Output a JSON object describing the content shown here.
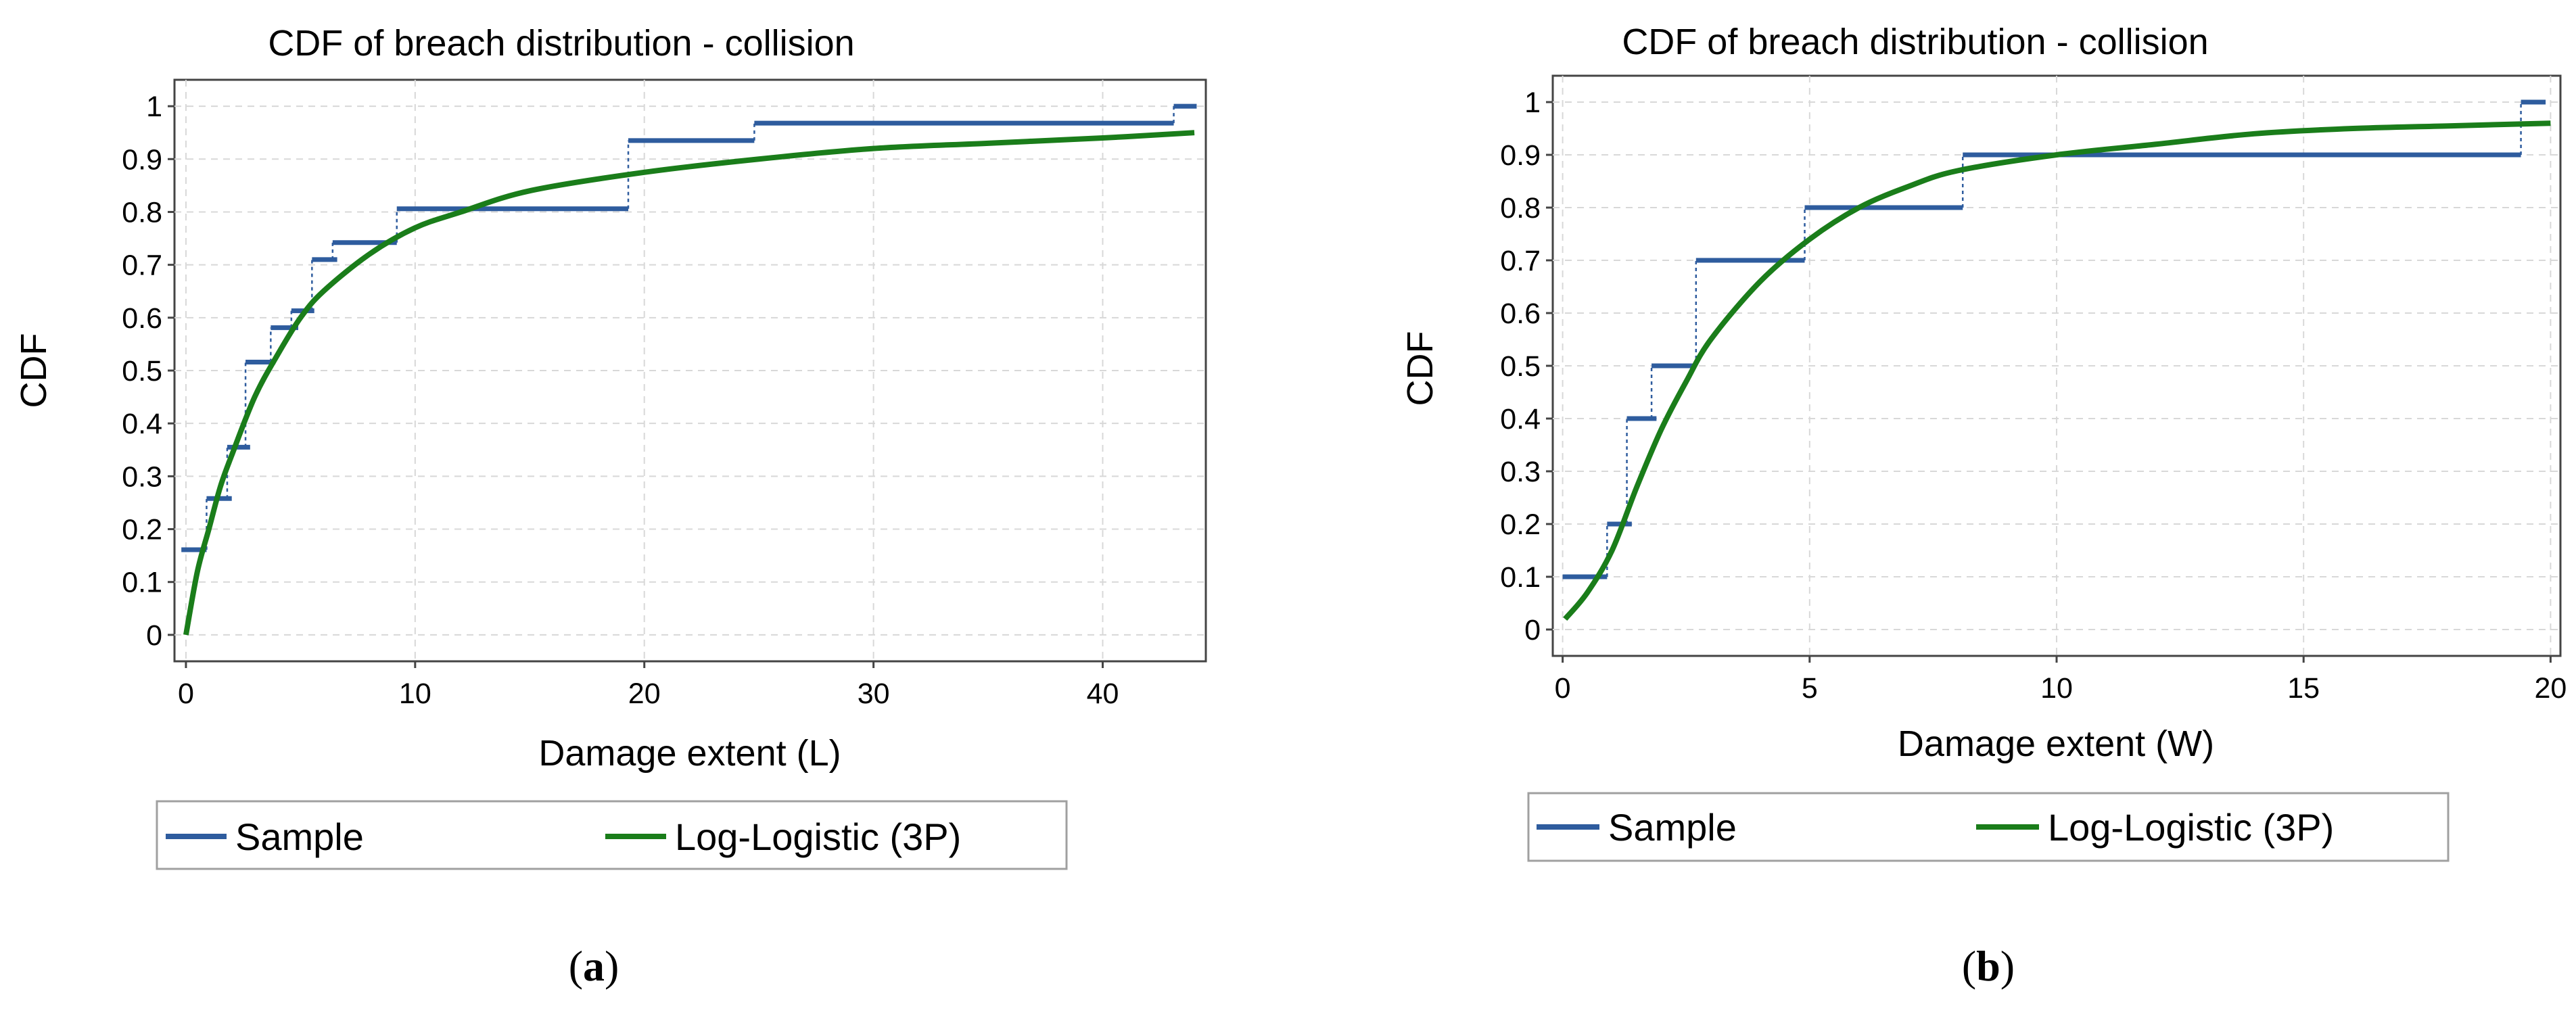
{
  "colors": {
    "sample": "#2e5c9e",
    "fit": "#1a7d1a"
  },
  "chart_data": [
    {
      "type": "line",
      "panel_caption": "a",
      "title": "CDF of breach distribution - collision",
      "xlabel": "Damage extent (L)",
      "ylabel": "CDF",
      "xlim": [
        -0.5,
        44.5
      ],
      "ylim": [
        -0.05,
        1.05
      ],
      "xticks": [
        0,
        10,
        20,
        30,
        40
      ],
      "yticks": [
        0,
        0.1,
        0.2,
        0.3,
        0.4,
        0.5,
        0.6,
        0.7,
        0.8,
        0.9,
        1
      ],
      "ytick_labels": [
        "0",
        "0.1",
        "0.2",
        "0.3",
        "0.4",
        "0.5",
        "0.6",
        "0.7",
        "0.8",
        "0.9",
        "1"
      ],
      "grid": true,
      "legend": {
        "position": "bottom",
        "items": [
          "Sample",
          "Log-Logistic (3P)"
        ]
      },
      "series": [
        {
          "name": "Sample",
          "kind": "step",
          "steps": [
            {
              "x0": -0.2,
              "x1": 0.9,
              "y": 0.161
            },
            {
              "x0": 0.9,
              "x1": 2.0,
              "y": 0.258
            },
            {
              "x0": 1.8,
              "x1": 2.8,
              "y": 0.355
            },
            {
              "x0": 2.6,
              "x1": 3.9,
              "y": 0.516
            },
            {
              "x0": 3.7,
              "x1": 4.9,
              "y": 0.581
            },
            {
              "x0": 4.6,
              "x1": 5.6,
              "y": 0.613
            },
            {
              "x0": 5.5,
              "x1": 6.6,
              "y": 0.71
            },
            {
              "x0": 6.4,
              "x1": 9.2,
              "y": 0.742
            },
            {
              "x0": 9.2,
              "x1": 19.3,
              "y": 0.806
            },
            {
              "x0": 19.3,
              "x1": 24.8,
              "y": 0.935
            },
            {
              "x0": 24.8,
              "x1": 43.1,
              "y": 0.968
            },
            {
              "x0": 43.1,
              "x1": 44.1,
              "y": 1.0
            }
          ]
        },
        {
          "name": "Log-Logistic (3P)",
          "kind": "curve",
          "x": [
            0,
            0.5,
            1,
            1.5,
            2,
            3,
            4,
            5,
            6,
            8,
            10,
            12,
            15,
            20,
            25,
            30,
            35,
            40,
            44
          ],
          "y": [
            0,
            0.12,
            0.2,
            0.28,
            0.34,
            0.45,
            0.53,
            0.6,
            0.65,
            0.72,
            0.77,
            0.8,
            0.84,
            0.875,
            0.9,
            0.92,
            0.93,
            0.94,
            0.95
          ]
        }
      ]
    },
    {
      "type": "line",
      "panel_caption": "b",
      "title": "CDF of breach distribution - collision",
      "xlabel": "Damage extent (W)",
      "ylabel": "CDF",
      "xlim": [
        -0.2,
        20.2
      ],
      "ylim": [
        -0.05,
        1.05
      ],
      "xticks": [
        0,
        5,
        10,
        15,
        20
      ],
      "yticks": [
        0,
        0.1,
        0.2,
        0.3,
        0.4,
        0.5,
        0.6,
        0.7,
        0.8,
        0.9,
        1
      ],
      "ytick_labels": [
        "0",
        "0.1",
        "0.2",
        "0.3",
        "0.4",
        "0.5",
        "0.6",
        "0.7",
        "0.8",
        "0.9",
        "1"
      ],
      "grid": true,
      "legend": {
        "position": "bottom",
        "items": [
          "Sample",
          "Log-Logistic (3P)"
        ]
      },
      "series": [
        {
          "name": "Sample",
          "kind": "step",
          "steps": [
            {
              "x0": 0.0,
              "x1": 0.9,
              "y": 0.1
            },
            {
              "x0": 0.9,
              "x1": 1.4,
              "y": 0.2
            },
            {
              "x0": 1.3,
              "x1": 1.9,
              "y": 0.4
            },
            {
              "x0": 1.8,
              "x1": 2.7,
              "y": 0.5
            },
            {
              "x0": 2.7,
              "x1": 4.9,
              "y": 0.7
            },
            {
              "x0": 4.9,
              "x1": 8.1,
              "y": 0.8
            },
            {
              "x0": 8.1,
              "x1": 19.4,
              "y": 0.9
            },
            {
              "x0": 19.4,
              "x1": 19.9,
              "y": 1.0
            }
          ]
        },
        {
          "name": "Log-Logistic (3P)",
          "kind": "curve",
          "x": [
            0.05,
            0.5,
            1,
            1.5,
            2,
            2.5,
            3,
            4,
            5,
            6,
            7,
            8,
            10,
            12,
            14,
            16,
            18,
            20
          ],
          "y": [
            0.02,
            0.07,
            0.15,
            0.27,
            0.38,
            0.47,
            0.55,
            0.66,
            0.74,
            0.8,
            0.84,
            0.87,
            0.9,
            0.92,
            0.94,
            0.95,
            0.955,
            0.96
          ]
        }
      ]
    }
  ]
}
